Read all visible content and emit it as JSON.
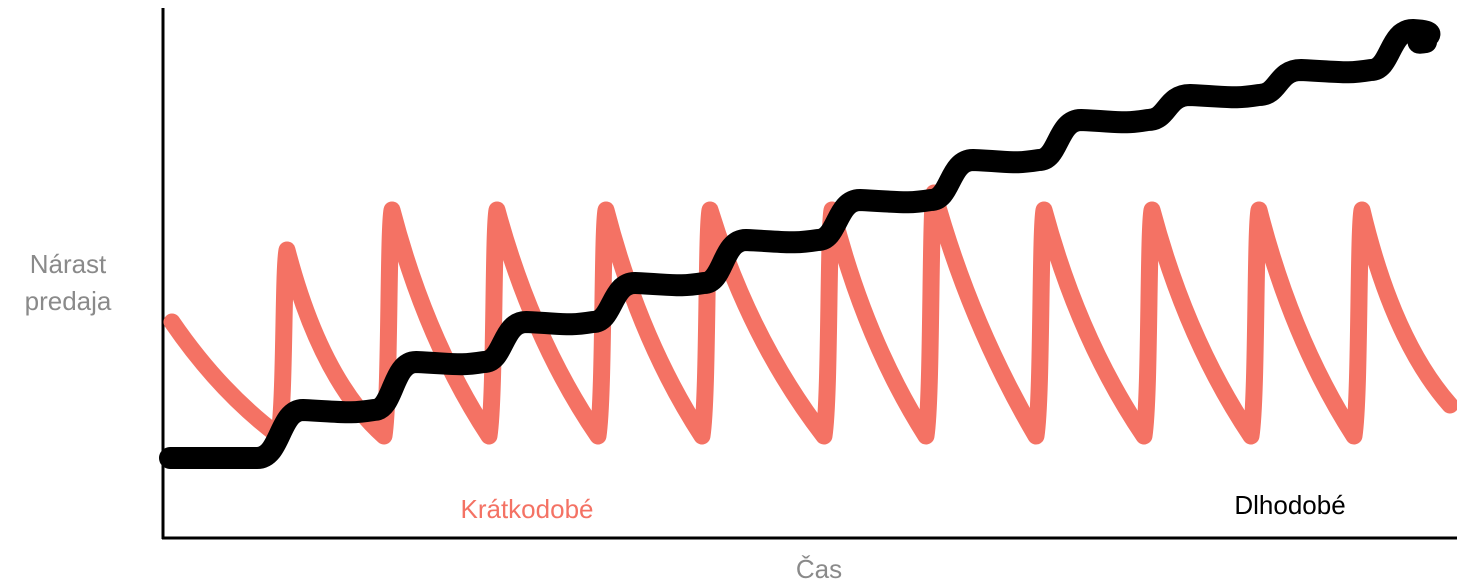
{
  "axes": {
    "y_label_lines": [
      "Nárast",
      "predaja"
    ],
    "x_label": "Čas"
  },
  "series": {
    "short_term": {
      "label": "Krátkodobé",
      "color": "#F47264"
    },
    "long_term": {
      "label": "Dlhodobé",
      "color": "#000000"
    }
  },
  "colors": {
    "axis_label": "#8A8A8A"
  }
}
